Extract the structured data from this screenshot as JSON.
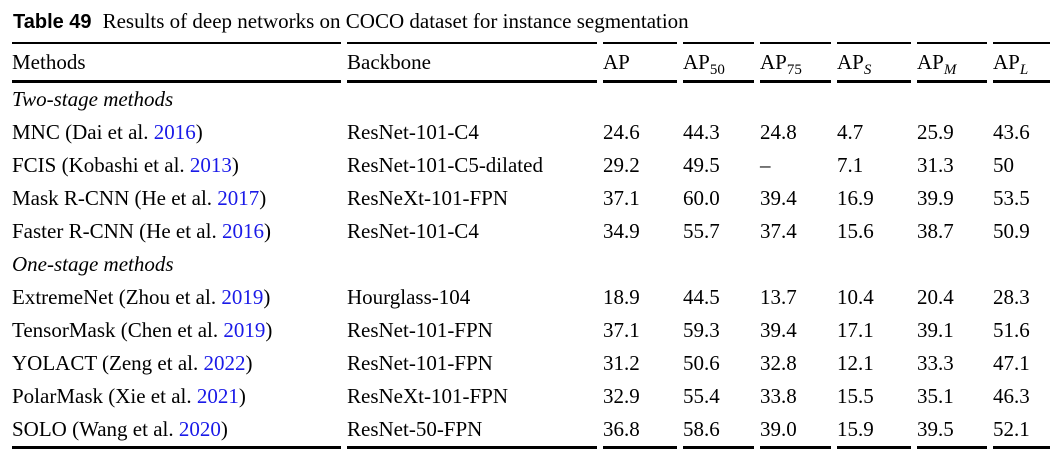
{
  "caption": {
    "label": "Table 49",
    "text": "Results of deep networks on COCO dataset for instance segmentation"
  },
  "columns": [
    {
      "label": "Methods",
      "sub": ""
    },
    {
      "label": "Backbone",
      "sub": ""
    },
    {
      "label": "AP",
      "sub": ""
    },
    {
      "label": "AP",
      "sub": "50"
    },
    {
      "label": "AP",
      "sub": "75"
    },
    {
      "label": "AP",
      "sub": "S"
    },
    {
      "label": "AP",
      "sub": "M"
    },
    {
      "label": "AP",
      "sub": "L"
    }
  ],
  "groups": [
    {
      "title": "Two-stage methods",
      "rows": [
        {
          "method": "MNC (Dai et al. ",
          "year": "2016",
          "close": ")",
          "backbone": "ResNet-101-C4",
          "metrics": [
            "24.6",
            "44.3",
            "24.8",
            "4.7",
            "25.9",
            "43.6"
          ]
        },
        {
          "method": "FCIS (Kobashi et al. ",
          "year": "2013",
          "close": ")",
          "backbone": "ResNet-101-C5-dilated",
          "metrics": [
            "29.2",
            "49.5",
            "–",
            "7.1",
            "31.3",
            "50"
          ]
        },
        {
          "method": "Mask R-CNN (He et al. ",
          "year": "2017",
          "close": ")",
          "backbone": "ResNeXt-101-FPN",
          "metrics": [
            "37.1",
            "60.0",
            "39.4",
            "16.9",
            "39.9",
            "53.5"
          ]
        },
        {
          "method": "Faster R-CNN (He et al. ",
          "year": "2016",
          "close": ")",
          "backbone": "ResNet-101-C4",
          "metrics": [
            "34.9",
            "55.7",
            "37.4",
            "15.6",
            "38.7",
            "50.9"
          ]
        }
      ]
    },
    {
      "title": "One-stage methods",
      "rows": [
        {
          "method": "ExtremeNet (Zhou et al. ",
          "year": "2019",
          "close": ")",
          "backbone": "Hourglass-104",
          "metrics": [
            "18.9",
            "44.5",
            "13.7",
            "10.4",
            "20.4",
            "28.3"
          ]
        },
        {
          "method": "TensorMask (Chen et al. ",
          "year": "2019",
          "close": ")",
          "backbone": "ResNet-101-FPN",
          "metrics": [
            "37.1",
            "59.3",
            "39.4",
            "17.1",
            "39.1",
            "51.6"
          ]
        },
        {
          "method": "YOLACT (Zeng et al. ",
          "year": "2022",
          "close": ")",
          "backbone": "ResNet-101-FPN",
          "metrics": [
            "31.2",
            "50.6",
            "32.8",
            "12.1",
            "33.3",
            "47.1"
          ]
        },
        {
          "method": "PolarMask (Xie et al. ",
          "year": "2021",
          "close": ")",
          "backbone": "ResNeXt-101-FPN",
          "metrics": [
            "32.9",
            "55.4",
            "33.8",
            "15.5",
            "35.1",
            "46.3"
          ]
        },
        {
          "method": "SOLO (Wang et al. ",
          "year": "2020",
          "close": ")",
          "backbone": "ResNet-50-FPN",
          "metrics": [
            "36.8",
            "58.6",
            "39.0",
            "15.9",
            "39.5",
            "52.1"
          ]
        }
      ]
    }
  ],
  "colors": {
    "citation_blue": "#1a1ae8",
    "text": "#000000",
    "rule": "#000000"
  }
}
